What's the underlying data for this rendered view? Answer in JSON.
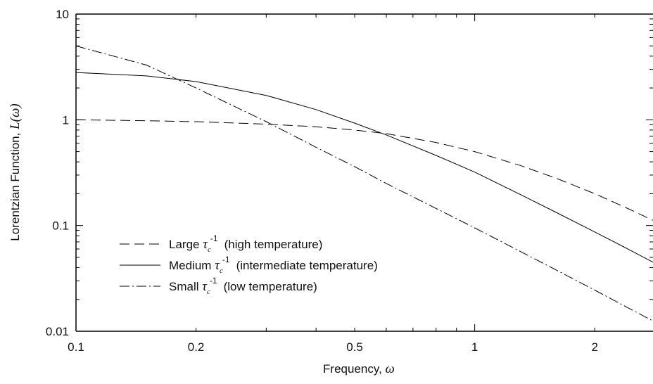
{
  "chart_data": {
    "type": "line",
    "xscale": "log",
    "yscale": "log",
    "xlim": [
      0.1,
      2.8
    ],
    "ylim": [
      0.01,
      10
    ],
    "x_ticks": [
      0.1,
      0.2,
      0.5,
      1,
      2
    ],
    "x_tick_labels": [
      "0.1",
      "0.2",
      "0.5",
      "1",
      "2"
    ],
    "y_ticks": [
      0.01,
      0.1,
      1,
      10
    ],
    "y_tick_labels": [
      "0.01",
      "0.1",
      "1",
      "10"
    ],
    "xlabel": "Frequency, ",
    "xlabel_symbol": "ω",
    "ylabel": "Lorentzian Function, ",
    "ylabel_symbol": "L(ω)",
    "grid": false,
    "legend_position": "bottom-left",
    "series": [
      {
        "name": "Large τc-1 (high temperature)",
        "style": "dashed",
        "x": [
          0.1,
          0.15,
          0.2,
          0.3,
          0.4,
          0.5,
          0.6,
          0.8,
          1.0,
          1.3,
          1.6,
          2.0,
          2.4,
          2.8
        ],
        "y": [
          1.0,
          0.98,
          0.96,
          0.91,
          0.86,
          0.8,
          0.74,
          0.61,
          0.5,
          0.37,
          0.28,
          0.2,
          0.147,
          0.112
        ]
      },
      {
        "name": "Medium τc-1 (intermediate temperature)",
        "style": "solid",
        "x": [
          0.1,
          0.15,
          0.2,
          0.3,
          0.4,
          0.5,
          0.6,
          0.8,
          1.0,
          1.3,
          1.6,
          2.0,
          2.4,
          2.8
        ],
        "y": [
          2.8,
          2.6,
          2.3,
          1.7,
          1.25,
          0.93,
          0.72,
          0.46,
          0.32,
          0.197,
          0.133,
          0.087,
          0.061,
          0.045
        ]
      },
      {
        "name": "Small τc-1 (low temperature)",
        "style": "dash-dot",
        "x": [
          0.1,
          0.15,
          0.2,
          0.3,
          0.4,
          0.5,
          0.6,
          0.8,
          1.0,
          1.3,
          1.6,
          2.0,
          2.4,
          2.8
        ],
        "y": [
          5.0,
          3.3,
          2.0,
          0.96,
          0.55,
          0.36,
          0.25,
          0.145,
          0.095,
          0.057,
          0.038,
          0.0245,
          0.017,
          0.0125
        ]
      }
    ]
  },
  "legend": [
    {
      "prefix": "Large ",
      "tau": "τ",
      "sub": "c",
      "sup": "-1",
      "suffix": "(high temperature)"
    },
    {
      "prefix": "Medium ",
      "tau": "τ",
      "sub": "c",
      "sup": "-1",
      "suffix": "(intermediate temperature)"
    },
    {
      "prefix": "Small ",
      "tau": "τ",
      "sub": "c",
      "sup": "-1",
      "suffix": "(low temperature)"
    }
  ]
}
